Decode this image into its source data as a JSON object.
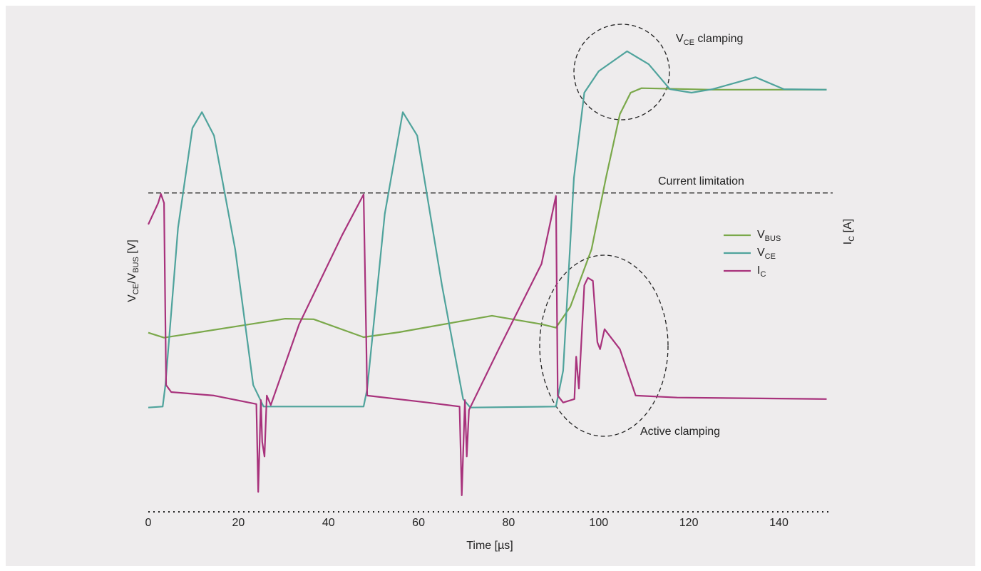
{
  "chart_data": {
    "type": "line",
    "x_label": "Time [µs]",
    "y_label": [
      {
        "text": "V"
      },
      {
        "text": "CE",
        "sub": true
      },
      {
        "text": "/V"
      },
      {
        "text": "BUS",
        "sub": true
      },
      {
        "text": " [V]"
      }
    ],
    "y2_label": [
      {
        "text": "I"
      },
      {
        "text": "C",
        "sub": true
      },
      {
        "text": " [A]"
      }
    ],
    "xlim": [
      0,
      151
    ],
    "xticks": [
      0,
      20,
      40,
      60,
      80,
      100,
      120,
      140
    ],
    "ylim": [
      0,
      100
    ],
    "current_limitation": {
      "label": "Current limitation",
      "value": 63.9
    },
    "annotations": [
      [
        {
          "text": "V"
        },
        {
          "text": "CE",
          "sub": true
        },
        {
          "text": " clamping"
        }
      ],
      [
        {
          "text": "Active clamping"
        }
      ]
    ],
    "series": [
      {
        "name": [
          {
            "text": "V"
          },
          {
            "text": "BUS",
            "sub": true
          }
        ],
        "color": "#7aa84a",
        "x": [
          0,
          3.5,
          30.4,
          36.7,
          47.8,
          55.7,
          76.3,
          87.3,
          90.5,
          93.7,
          98.4,
          101.6,
          104.7,
          107.1,
          109.5,
          125.3,
          150.6
        ],
        "values": [
          35.9,
          34.9,
          38.7,
          38.6,
          35,
          36,
          39.3,
          37.6,
          36.9,
          41.1,
          52.6,
          66.9,
          79.7,
          84,
          84.9,
          84.6,
          84.6
        ]
      },
      {
        "name": [
          {
            "text": "V"
          },
          {
            "text": "CE",
            "sub": true
          }
        ],
        "color": "#4fa39c",
        "x": [
          0,
          3.2,
          3.8,
          6.6,
          9.8,
          11.9,
          14.6,
          19.3,
          23.3,
          25.6,
          47.8,
          48.6,
          52.5,
          56.5,
          59.7,
          65.2,
          69.9,
          71.5,
          90.5,
          92.1,
          94.5,
          96.8,
          100,
          106.3,
          111.1,
          115.8,
          120.6,
          125.3,
          134.8,
          141.1,
          150.6
        ],
        "values": [
          20.9,
          21.1,
          25.4,
          56.9,
          76.9,
          80.1,
          75.4,
          52.6,
          25.4,
          21.1,
          21.1,
          24.6,
          59.7,
          80.1,
          75.4,
          45.4,
          22.6,
          20.9,
          21.1,
          28.3,
          66.9,
          84,
          88.3,
          92.3,
          89.7,
          84.7,
          84,
          84.7,
          87.1,
          84.7,
          84.6
        ]
      },
      {
        "name": [
          {
            "text": "I"
          },
          {
            "text": "C",
            "sub": true
          }
        ],
        "color": "#a8327c",
        "x": [
          0,
          2.2,
          2.8,
          3.5,
          3.96,
          5.1,
          14.6,
          24,
          24.4,
          25,
          25.3,
          25.8,
          26.3,
          27.2,
          33.5,
          43,
          47.8,
          48.4,
          48.6,
          62,
          69.1,
          69.6,
          70.3,
          70.7,
          71.2,
          77.8,
          87.3,
          90.5,
          90.9,
          92.1,
          94.6,
          95,
          95.6,
          96.8,
          97.6,
          98.7,
          99.7,
          100.3,
          101.3,
          104.7,
          108.2,
          117.4,
          150.6
        ],
        "values": [
          57.6,
          61.9,
          63.7,
          61.9,
          25.4,
          24,
          23.3,
          21.6,
          4,
          22.4,
          14,
          11.1,
          23.3,
          21.4,
          37.6,
          55.4,
          63.6,
          34,
          23.3,
          21.9,
          21.1,
          3.3,
          22.4,
          11.1,
          20.4,
          32.6,
          49.7,
          63.3,
          23.3,
          21.9,
          22.6,
          31.1,
          24.7,
          45.4,
          46.9,
          46.3,
          34,
          32.6,
          36.6,
          32.6,
          23.3,
          22.9,
          22.6
        ]
      }
    ]
  }
}
